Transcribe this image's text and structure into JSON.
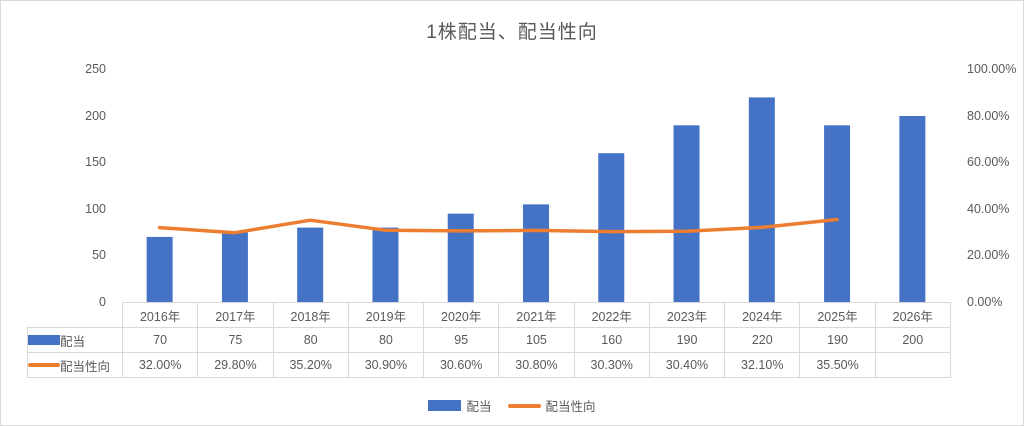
{
  "title": "1株配当、配当性向",
  "chart_data": {
    "type": "combo",
    "title": "1株配当、配当性向",
    "categories": [
      "2016年",
      "2017年",
      "2018年",
      "2019年",
      "2020年",
      "2021年",
      "2022年",
      "2023年",
      "2024年",
      "2025年",
      "2026年"
    ],
    "series": [
      {
        "name": "配当",
        "type": "bar",
        "axis": "left",
        "color": "#4472C4",
        "values": [
          70,
          75,
          80,
          80,
          95,
          105,
          160,
          190,
          220,
          190,
          200
        ],
        "labels": [
          "70",
          "75",
          "80",
          "80",
          "95",
          "105",
          "160",
          "190",
          "220",
          "190",
          "200"
        ]
      },
      {
        "name": "配当性向",
        "type": "line",
        "axis": "right",
        "color": "#ED7D31",
        "values": [
          32.0,
          29.8,
          35.2,
          30.9,
          30.6,
          30.8,
          30.3,
          30.4,
          32.1,
          35.5,
          null
        ],
        "labels": [
          "32.00%",
          "29.80%",
          "35.20%",
          "30.90%",
          "30.60%",
          "30.80%",
          "30.30%",
          "30.40%",
          "32.10%",
          "35.50%",
          ""
        ]
      }
    ],
    "left_axis": {
      "min": 0,
      "max": 250,
      "ticks": [
        "0",
        "50",
        "100",
        "150",
        "200",
        "250"
      ]
    },
    "right_axis": {
      "min": 0,
      "max": 100,
      "ticks": [
        "0.00%",
        "20.00%",
        "40.00%",
        "60.00%",
        "80.00%",
        "100.00%"
      ]
    },
    "grid": false,
    "legend_position": "bottom",
    "has_data_table": true
  },
  "colors": {
    "bar": "#4472C4",
    "line": "#ED7D31",
    "text": "#595959",
    "border": "#d9d9d9"
  }
}
